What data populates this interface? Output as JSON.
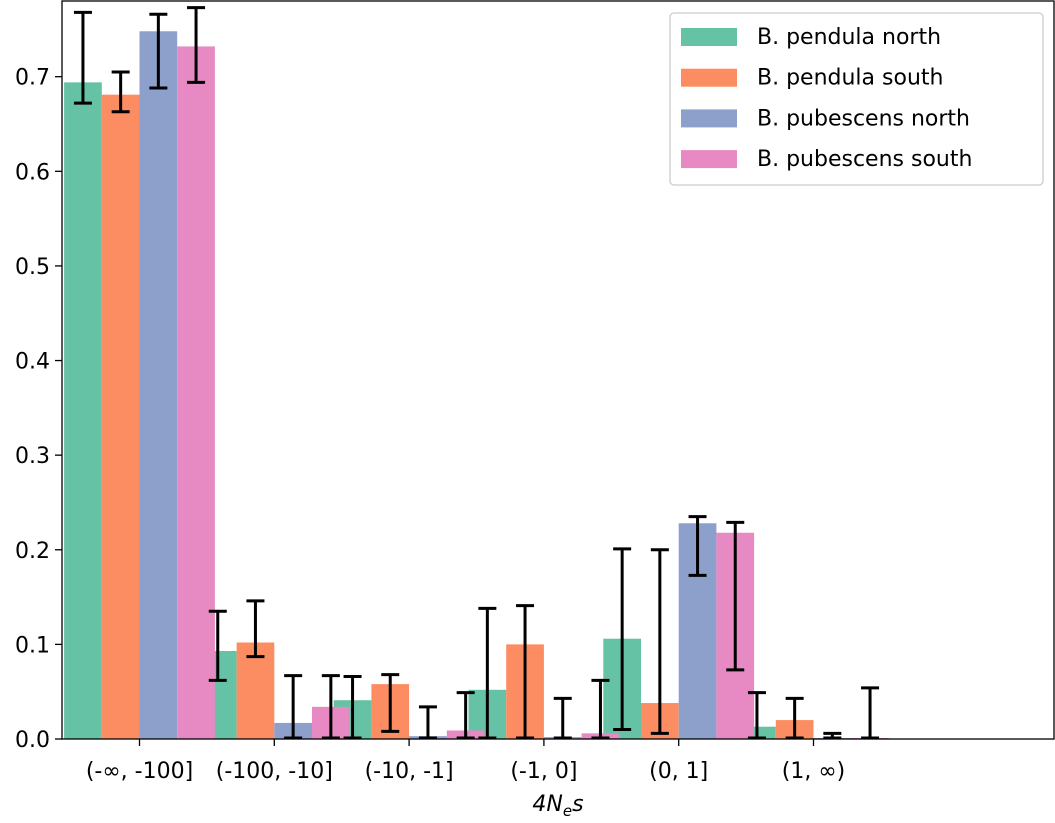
{
  "chart_data": {
    "type": "bar",
    "title": "",
    "xlabel_main": "4N",
    "xlabel_sub": "e",
    "xlabel_tail": "s",
    "ylabel": "",
    "ylim": [
      0,
      0.78
    ],
    "yticks": [
      "0.0",
      "0.1",
      "0.2",
      "0.3",
      "0.4",
      "0.5",
      "0.6",
      "0.7"
    ],
    "categories": [
      "(-∞, -100]",
      "(-100, -10]",
      "(-10, -1]",
      "(-1, 0]",
      "(0, 1]",
      "(1, ∞)"
    ],
    "series": [
      {
        "name": "B. pendula north",
        "color": "#66c2a5",
        "values": [
          0.694,
          0.093,
          0.041,
          0.052,
          0.106,
          0.013
        ],
        "err_low": [
          0.672,
          0.062,
          0.001,
          0.001,
          0.01,
          0.001
        ],
        "err_high": [
          0.768,
          0.135,
          0.066,
          0.138,
          0.201,
          0.049
        ]
      },
      {
        "name": "B. pendula south",
        "color": "#fc8d62",
        "values": [
          0.681,
          0.102,
          0.058,
          0.1,
          0.038,
          0.02
        ],
        "err_low": [
          0.663,
          0.087,
          0.008,
          0.001,
          0.006,
          0.001
        ],
        "err_high": [
          0.705,
          0.146,
          0.068,
          0.141,
          0.2,
          0.043
        ]
      },
      {
        "name": "B. pubescens north",
        "color": "#8da0cb",
        "values": [
          0.748,
          0.017,
          0.003,
          0.002,
          0.228,
          0.001
        ],
        "err_low": [
          0.688,
          0.001,
          0.001,
          0.001,
          0.173,
          0.001
        ],
        "err_high": [
          0.766,
          0.067,
          0.034,
          0.043,
          0.235,
          0.006
        ]
      },
      {
        "name": "B. pubescens south",
        "color": "#e78ac3",
        "values": [
          0.732,
          0.034,
          0.009,
          0.006,
          0.218,
          0.001
        ],
        "err_low": [
          0.694,
          0.001,
          0.001,
          0.001,
          0.073,
          0.001
        ],
        "err_high": [
          0.773,
          0.067,
          0.049,
          0.062,
          0.229,
          0.054
        ]
      }
    ],
    "legend_position": "top-right",
    "grid": false
  }
}
